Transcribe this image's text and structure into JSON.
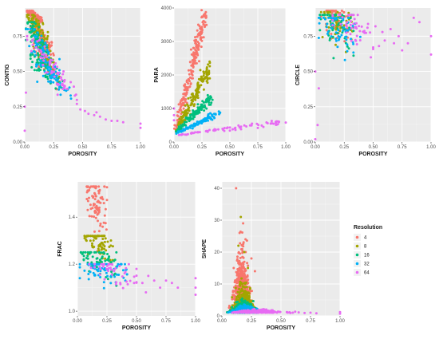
{
  "chart_data": [
    {
      "type": "scatter",
      "panel": "contig",
      "xlabel": "POROSITY",
      "ylabel": "CONTIG",
      "xlim": [
        0,
        1
      ],
      "ylim": [
        0,
        0.95
      ],
      "x_ticks": [
        "0.00",
        "0.25",
        "0.50",
        "0.75",
        "1.00"
      ],
      "y_ticks": [
        "0.00",
        "0.25",
        "0.50",
        "0.75"
      ],
      "grid": true,
      "series": [
        {
          "name": "4",
          "clusters": [
            [
              0.02,
              0.15,
              0.85,
              0.93,
              0.55
            ],
            [
              0.05,
              0.25,
              0.6,
              0.85,
              0.45
            ],
            [
              0.08,
              0.28,
              0.4,
              0.7,
              0.25
            ]
          ]
        },
        {
          "name": "8",
          "clusters": [
            [
              0.02,
              0.2,
              0.7,
              0.9,
              0.45
            ],
            [
              0.06,
              0.3,
              0.45,
              0.72,
              0.35
            ]
          ]
        },
        {
          "name": "16",
          "clusters": [
            [
              0.01,
              0.2,
              0.55,
              0.85,
              0.45
            ],
            [
              0.05,
              0.33,
              0.38,
              0.62,
              0.3
            ]
          ]
        },
        {
          "name": "32",
          "clusters": [
            [
              0.01,
              0.3,
              0.42,
              0.8,
              0.4
            ],
            [
              0.1,
              0.4,
              0.32,
              0.55,
              0.25
            ]
          ]
        },
        {
          "name": "64",
          "clusters": [
            [
              0.15,
              0.45,
              0.3,
              0.6,
              0.25
            ],
            [
              0.02,
              0.25,
              0.5,
              0.75,
              0.15
            ]
          ],
          "points": [
            [
              0.52,
              0.22
            ],
            [
              0.55,
              0.2
            ],
            [
              0.6,
              0.19
            ],
            [
              0.62,
              0.21
            ],
            [
              0.65,
              0.18
            ],
            [
              0.7,
              0.16
            ],
            [
              0.75,
              0.15
            ],
            [
              0.8,
              0.15
            ],
            [
              0.85,
              0.14
            ],
            [
              1.0,
              0.1
            ],
            [
              1.0,
              0.13
            ],
            [
              0.0,
              0.08
            ],
            [
              0.0,
              0.25
            ],
            [
              0.01,
              0.35
            ],
            [
              0.48,
              0.23
            ],
            [
              0.45,
              0.27
            ]
          ]
        }
      ]
    },
    {
      "type": "scatter",
      "panel": "para",
      "xlabel": "POROSITY",
      "ylabel": "PARA",
      "xlim": [
        0,
        1
      ],
      "ylim": [
        0,
        4000
      ],
      "x_ticks": [
        "0.00",
        "0.25",
        "0.50",
        "0.75",
        "1.00"
      ],
      "y_ticks": [
        "0",
        "1000",
        "2000",
        "3000",
        "4000"
      ],
      "grid": true,
      "series": [
        {
          "name": "4",
          "bands": [
            [
              0.02,
              0.28,
              400,
              3800,
              220
            ]
          ]
        },
        {
          "name": "8",
          "bands": [
            [
              0.02,
              0.32,
              350,
              2200,
              150
            ]
          ]
        },
        {
          "name": "16",
          "bands": [
            [
              0.02,
              0.33,
              300,
              1300,
              120
            ]
          ]
        },
        {
          "name": "32",
          "bands": [
            [
              0.02,
              0.4,
              250,
              850,
              90
            ]
          ]
        },
        {
          "name": "64",
          "bands": [
            [
              0.02,
              0.95,
              200,
              600,
              70
            ]
          ],
          "points": [
            [
              0.0,
              800
            ],
            [
              0.0,
              1000
            ],
            [
              0.0,
              650
            ],
            [
              1.0,
              580
            ],
            [
              0.8,
              450
            ],
            [
              0.75,
              420
            ],
            [
              0.6,
              380
            ],
            [
              0.55,
              360
            ],
            [
              0.5,
              340
            ],
            [
              0.45,
              330
            ]
          ]
        }
      ]
    },
    {
      "type": "scatter",
      "panel": "circle",
      "xlabel": "POROSITY",
      "ylabel": "CIRCLE",
      "xlim": [
        0,
        1
      ],
      "ylim": [
        0,
        0.95
      ],
      "x_ticks": [
        "0.00",
        "0.25",
        "0.50",
        "0.75",
        "1.00"
      ],
      "y_ticks": [
        "0.00",
        "0.25",
        "0.50",
        "0.75"
      ],
      "grid": true,
      "series": [
        {
          "name": "4",
          "clusters": [
            [
              0.05,
              0.28,
              0.55,
              0.93,
              0.35
            ]
          ]
        },
        {
          "name": "8",
          "clusters": [
            [
              0.05,
              0.32,
              0.5,
              0.92,
              0.3
            ]
          ]
        },
        {
          "name": "16",
          "clusters": [
            [
              0.04,
              0.33,
              0.45,
              0.9,
              0.35
            ]
          ]
        },
        {
          "name": "32",
          "clusters": [
            [
              0.03,
              0.4,
              0.4,
              0.88,
              0.35
            ]
          ]
        },
        {
          "name": "64",
          "clusters": [
            [
              0.15,
              0.5,
              0.5,
              0.9,
              0.25
            ]
          ],
          "points": [
            [
              0.52,
              0.82
            ],
            [
              0.58,
              0.78
            ],
            [
              0.6,
              0.72
            ],
            [
              0.65,
              0.8
            ],
            [
              0.68,
              0.7
            ],
            [
              0.72,
              0.75
            ],
            [
              0.75,
              0.65
            ],
            [
              0.8,
              0.7
            ],
            [
              0.85,
              0.88
            ],
            [
              0.9,
              0.85
            ],
            [
              1.0,
              0.75
            ],
            [
              1.0,
              0.62
            ],
            [
              0.55,
              0.68
            ],
            [
              0.48,
              0.6
            ],
            [
              0.0,
              0.02
            ],
            [
              0.02,
              0.12
            ],
            [
              0.03,
              0.38
            ],
            [
              0.0,
              0.5
            ]
          ]
        }
      ]
    },
    {
      "type": "scatter",
      "panel": "frac",
      "xlabel": "POROSITY",
      "ylabel": "FRAC",
      "xlim": [
        0,
        1
      ],
      "ylim": [
        0.98,
        1.55
      ],
      "x_ticks": [
        "0.00",
        "0.25",
        "0.50",
        "0.75",
        "1.00"
      ],
      "y_ticks": [
        "1.0",
        "1.2",
        "1.4"
      ],
      "grid": true,
      "series": [
        {
          "name": "4",
          "clusters": [
            [
              0.08,
              0.25,
              1.15,
              1.53,
              0.55
            ]
          ]
        },
        {
          "name": "8",
          "clusters": [
            [
              0.06,
              0.3,
              1.1,
              1.32,
              0.45
            ]
          ]
        },
        {
          "name": "16",
          "clusters": [
            [
              0.03,
              0.33,
              1.05,
              1.25,
              0.4
            ]
          ]
        },
        {
          "name": "32",
          "clusters": [
            [
              0.02,
              0.42,
              1.02,
              1.2,
              0.4
            ]
          ]
        },
        {
          "name": "64",
          "clusters": [
            [
              0.1,
              0.5,
              1.02,
              1.2,
              0.25
            ]
          ],
          "points": [
            [
              0.55,
              1.12
            ],
            [
              0.6,
              1.15
            ],
            [
              0.65,
              1.13
            ],
            [
              0.7,
              1.1
            ],
            [
              0.75,
              1.13
            ],
            [
              0.8,
              1.12
            ],
            [
              0.85,
              1.1
            ],
            [
              1.0,
              1.14
            ],
            [
              1.0,
              1.1
            ],
            [
              1.0,
              1.07
            ],
            [
              0.58,
              1.08
            ],
            [
              0.5,
              1.18
            ],
            [
              0.48,
              1.12
            ]
          ]
        }
      ]
    },
    {
      "type": "scatter",
      "panel": "shape",
      "xlabel": "POROSITY",
      "ylabel": "SHAPE",
      "xlim": [
        0,
        1
      ],
      "ylim": [
        0,
        42
      ],
      "x_ticks": [
        "0.00",
        "0.25",
        "0.50",
        "0.75",
        "1.00"
      ],
      "y_ticks": [
        "0",
        "10",
        "20",
        "30",
        "40"
      ],
      "grid": true,
      "series": [
        {
          "name": "4",
          "peaks": [
            [
              0.17,
              0.07,
              22,
              600
            ]
          ],
          "points": [
            [
              0.12,
              40
            ],
            [
              0.18,
              29
            ],
            [
              0.15,
              26
            ],
            [
              0.2,
              24
            ],
            [
              0.25,
              18
            ],
            [
              0.1,
              15
            ],
            [
              0.28,
              14
            ]
          ]
        },
        {
          "name": "8",
          "peaks": [
            [
              0.18,
              0.08,
              10,
              450
            ]
          ],
          "points": [
            [
              0.16,
              31
            ],
            [
              0.14,
              22
            ],
            [
              0.19,
              20
            ],
            [
              0.22,
              15
            ]
          ]
        },
        {
          "name": "16",
          "peaks": [
            [
              0.18,
              0.09,
              4,
              350
            ]
          ]
        },
        {
          "name": "32",
          "peaks": [
            [
              0.2,
              0.1,
              2.5,
              350
            ]
          ]
        },
        {
          "name": "64",
          "peaks": [
            [
              0.3,
              0.18,
              1.2,
              250
            ]
          ],
          "points": [
            [
              0.55,
              1.2
            ],
            [
              0.6,
              1.0
            ],
            [
              0.65,
              1.1
            ],
            [
              0.7,
              0.9
            ],
            [
              0.75,
              1.0
            ],
            [
              0.8,
              0.8
            ],
            [
              1.0,
              1.2
            ],
            [
              1.0,
              0.7
            ],
            [
              0.58,
              0.9
            ],
            [
              0.62,
              1.3
            ]
          ]
        }
      ]
    }
  ],
  "legend": {
    "title": "Resolution",
    "items": [
      {
        "label": "4",
        "color": "#F8766D"
      },
      {
        "label": "8",
        "color": "#A3A500"
      },
      {
        "label": "16",
        "color": "#00BF7D"
      },
      {
        "label": "32",
        "color": "#00B0F6"
      },
      {
        "label": "64",
        "color": "#E76BF3"
      }
    ]
  },
  "colors": {
    "panel_bg": "#EBEBEB",
    "grid": "#FFFFFF"
  }
}
